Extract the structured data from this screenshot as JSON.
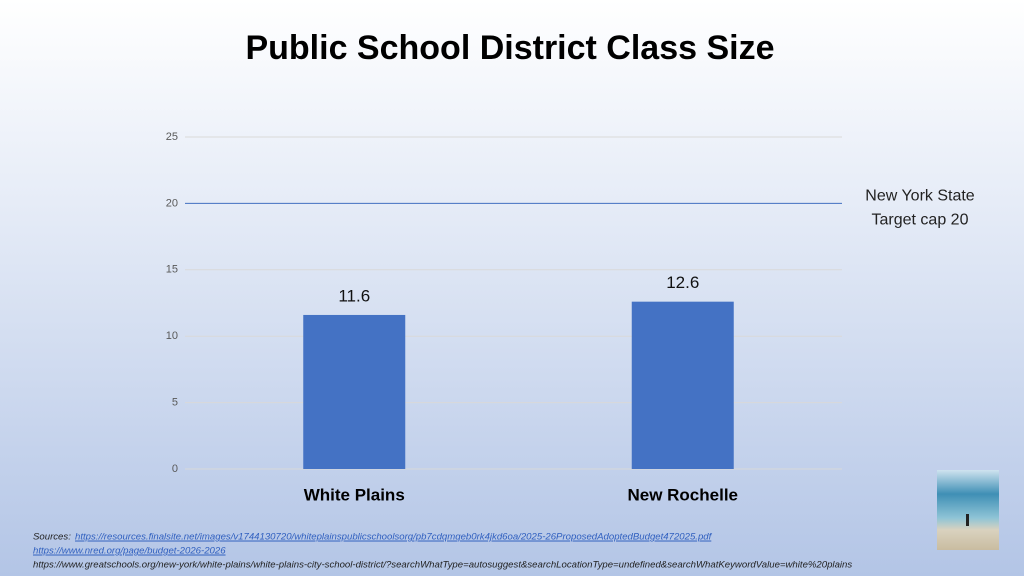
{
  "chart_data": {
    "type": "bar",
    "title": "Public School District Class Size",
    "categories": [
      "White Plains",
      "New Rochelle"
    ],
    "values": [
      11.6,
      12.6
    ],
    "color": "#4472c4",
    "ylim": [
      0,
      25
    ],
    "yticks": [
      0,
      5,
      10,
      15,
      20,
      25
    ],
    "grid": true,
    "reference_line": {
      "value": 20,
      "color": "#4472c4",
      "label": [
        "New York State",
        "Target cap 20"
      ]
    }
  },
  "sources": {
    "label": "Sources:",
    "links": [
      "https://resources.finalsite.net/images/v1744130720/whiteplainspublicschoolsorg/pb7cdqmqeb0rk4jkd6oa/2025-26ProposedAdoptedBudget472025.pdf",
      "https://www.nred.org/page/budget-2026-2026",
      "https://www.greatschools.org/new-york/white-plains/white-plains-city-school-district/?searchWhatType=autosuggest&searchLocationType=undefined&searchWhatKeywordValue=white%20plains"
    ]
  }
}
